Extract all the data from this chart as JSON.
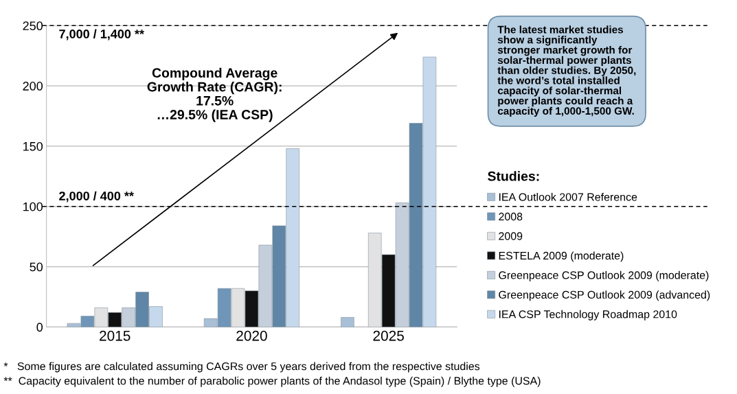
{
  "chart_data": {
    "type": "bar",
    "categories": [
      "2015",
      "2020",
      "2025"
    ],
    "series": [
      {
        "name": "IEA Outlook 2007 Reference",
        "color": "#a9bfd6",
        "values": [
          3,
          7,
          8
        ]
      },
      {
        "name": "2008",
        "color": "#6f96b8",
        "values": [
          9,
          32,
          null
        ]
      },
      {
        "name": "2009",
        "color": "#e2e2e2",
        "values": [
          16,
          32,
          78
        ]
      },
      {
        "name": "ESTELA 2009 (moderate)",
        "color": "#111111",
        "values": [
          12,
          30,
          60
        ]
      },
      {
        "name": "Greenpeace CSP Outlook 2009 (moderate)",
        "color": "#c5cfdb",
        "values": [
          16,
          68,
          103
        ]
      },
      {
        "name": "Greenpeace CSP Outlook 2009 (advanced)",
        "color": "#5f86a6",
        "values": [
          29,
          84,
          169
        ]
      },
      {
        "name": "IEA CSP Technology Roadmap 2010",
        "color": "#c6d9ec",
        "values": [
          17,
          148,
          224
        ]
      }
    ],
    "ylim": [
      0,
      250
    ],
    "yticks": [
      0,
      50,
      100,
      150,
      200,
      250
    ],
    "grid": "y",
    "legend": "right",
    "legend_title": "Studies:",
    "ref_lines": [
      {
        "axis": "y",
        "value": 100,
        "line_style": "dashed",
        "color": "#000000"
      },
      {
        "axis": "y",
        "value": 250,
        "line_style": "dashed",
        "color": "#000000"
      }
    ],
    "annotations": [
      {
        "text": "2,000 / 400 **",
        "y": 100
      },
      {
        "text": "7,000 / 1,400 **",
        "y": 250
      },
      "Compound Average\nGrowth Rate (CAGR):\n17.5%\n…29.5% (IEA CSP)",
      "The latest market studies\nshow a significantly\nstronger market growth for\nsolar-thermal power plants\nthan older studies. By 2050,\nthe word’s total installed\ncapacity of solar-thermal\npower plants could reach a\ncapacity of 1,000-1,500 GW.",
      "*   Some figures are calculated assuming CAGRs over 5 years derived from the respective studies",
      "**  Capacity equivalent to the number of parabolic power plants of the Andasol type (Spain) / Blythe type (USA)"
    ]
  }
}
